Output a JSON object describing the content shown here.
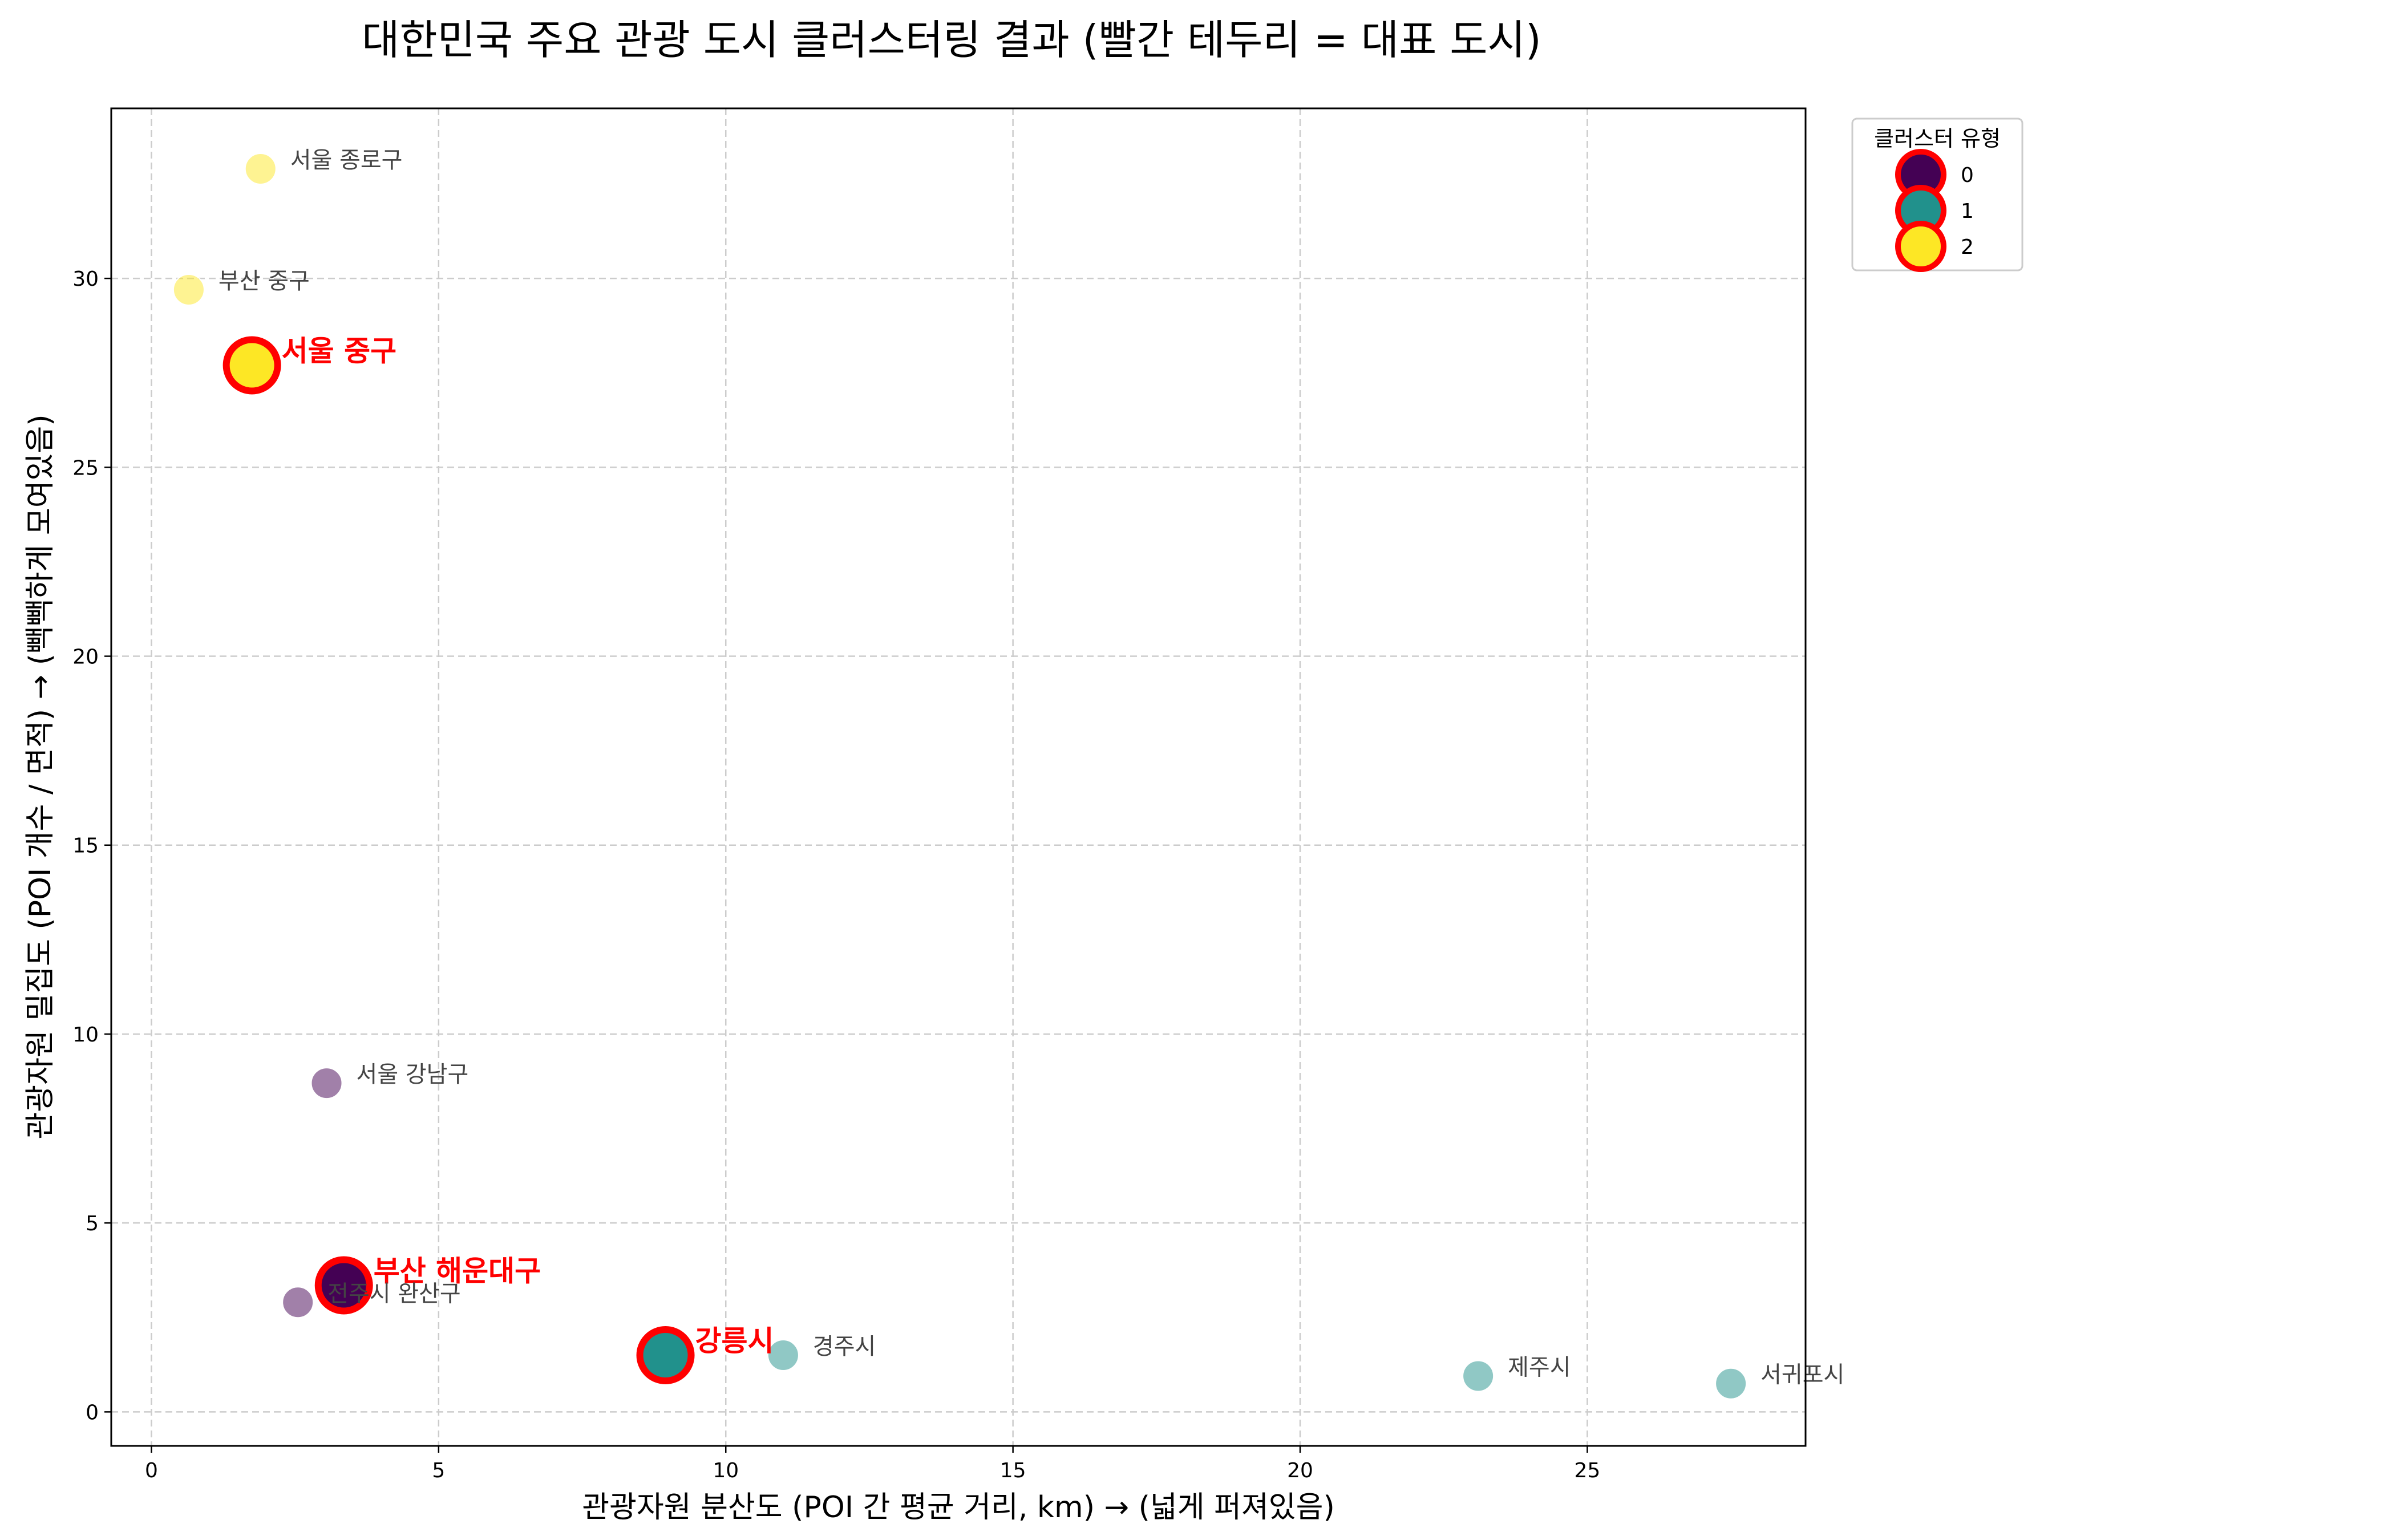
{
  "chart_data": {
    "type": "scatter",
    "title": "대한민국 주요 관광 도시 클러스터링 결과 (빨간 테두리 = 대표 도시)",
    "xlabel": "관광자원 분산도 (POI 간 평균 거리, km)  →  (넓게 퍼져있음)",
    "ylabel": "관광자원 밀집도 (POI 개수 / 면적)  →  (빽빽하게 모여있음)",
    "xlim": [
      -0.7,
      28.8
    ],
    "ylim": [
      -0.9,
      34.5
    ],
    "xticks": [
      0,
      5,
      10,
      15,
      20,
      25
    ],
    "yticks": [
      0,
      5,
      10,
      15,
      20,
      25,
      30
    ],
    "grid": true,
    "legend": {
      "title": "클러스터 유형",
      "position": "outside-top-right",
      "entries": [
        {
          "label": "0",
          "color": "#440154"
        },
        {
          "label": "1",
          "color": "#21918c"
        },
        {
          "label": "2",
          "color": "#fde725"
        }
      ]
    },
    "colors": {
      "0": "#440154",
      "1": "#21918c",
      "2": "#fde725",
      "representative_edge": "#ff0000",
      "representative_text": "#ff0000",
      "label_text": "#444444"
    },
    "points": [
      {
        "name": "서울 종로구",
        "x": 1.9,
        "y": 32.9,
        "cluster": 2,
        "representative": false
      },
      {
        "name": "부산 중구",
        "x": 0.65,
        "y": 29.7,
        "cluster": 2,
        "representative": false
      },
      {
        "name": "서울 중구",
        "x": 1.75,
        "y": 27.7,
        "cluster": 2,
        "representative": true
      },
      {
        "name": "서울 강남구",
        "x": 3.05,
        "y": 8.7,
        "cluster": 0,
        "representative": false
      },
      {
        "name": "부산 해운대구",
        "x": 3.35,
        "y": 3.35,
        "cluster": 0,
        "representative": true
      },
      {
        "name": "전주시 완산구",
        "x": 2.55,
        "y": 2.9,
        "cluster": 0,
        "representative": false
      },
      {
        "name": "강릉시",
        "x": 8.95,
        "y": 1.5,
        "cluster": 1,
        "representative": true
      },
      {
        "name": "경주시",
        "x": 11.0,
        "y": 1.5,
        "cluster": 1,
        "representative": false
      },
      {
        "name": "제주시",
        "x": 23.1,
        "y": 0.95,
        "cluster": 1,
        "representative": false
      },
      {
        "name": "서귀포시",
        "x": 27.5,
        "y": 0.75,
        "cluster": 1,
        "representative": false
      }
    ]
  }
}
